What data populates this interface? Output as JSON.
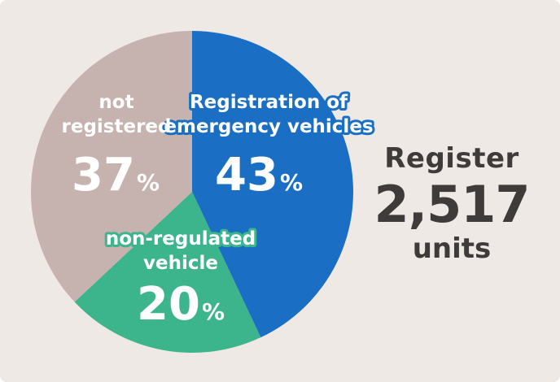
{
  "colors": {
    "background": "#efe9e6",
    "registered_emergency": "#1a6fc4",
    "non_regulated": "#3cb48c",
    "not_registered": "#c6b2ae",
    "label_outline_blue": "#1a6fc4",
    "label_outline_green": "#3cb48c",
    "summary_text": "#3f3b3a"
  },
  "summary": {
    "label": "Register",
    "value": "2,517",
    "unit": "units"
  },
  "chart_data": {
    "type": "pie",
    "start_angle_deg": 0,
    "direction": "clockwise",
    "slices": [
      {
        "label_lines": [
          "Registration of",
          "emergency vehicles"
        ],
        "value": 43,
        "pct_text": "43",
        "color": "#1a6fc4"
      },
      {
        "label_lines": [
          "non-regulated",
          "vehicle"
        ],
        "value": 20,
        "pct_text": "20",
        "color": "#3cb48c"
      },
      {
        "label_lines": [
          "not",
          "registered"
        ],
        "value": 37,
        "pct_text": "37",
        "color": "#c6b2ae"
      }
    ],
    "percent_symbol": "%"
  }
}
